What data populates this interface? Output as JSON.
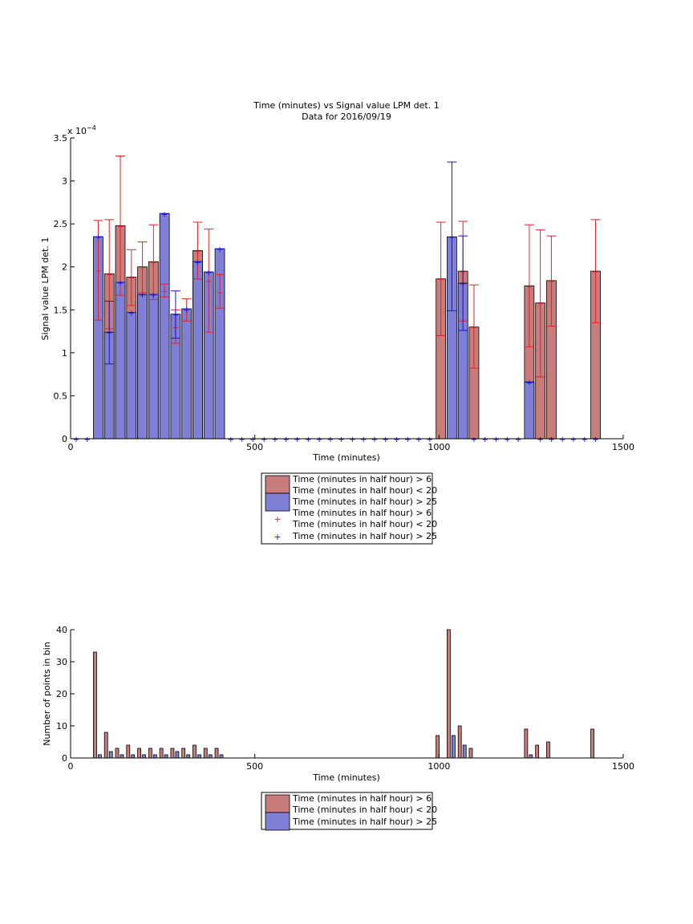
{
  "colors": {
    "red_bar": "#c97c7c",
    "blue_bar": "#7f7fd6",
    "red_err": "#e32222",
    "blue_err": "#1515d6",
    "axis": "#000000"
  },
  "chart_data": [
    {
      "type": "bar",
      "title": "Time (minutes) vs Signal value LPM det. 1",
      "subtitle": "Data for 2016/09/19",
      "xlabel": "Time (minutes)",
      "ylabel": "Signal value LPM det. 1",
      "y_exponent_label": "x 10^-4",
      "xlim": [
        0,
        1500
      ],
      "ylim": [
        0,
        3.5
      ],
      "xticks": [
        0,
        500,
        1000,
        1500
      ],
      "yticks": [
        0,
        0.5,
        1,
        1.5,
        2,
        2.5,
        3,
        3.5
      ],
      "ytick_labels": [
        "0",
        "0.5",
        "1",
        "1.5",
        "2",
        "2.5",
        "3",
        "3.5"
      ],
      "legend_position": "below",
      "legend": [
        "Time (minutes in half hour) > 6",
        "Time (minutes in half hour) < 20",
        "Time (minutes in half hour) > 25",
        "Time (minutes in half hour) > 6",
        "Time (minutes in half hour) < 20",
        "Time (minutes in half hour) > 25"
      ],
      "series": [
        {
          "name": "Time (minutes in half hour) > 6 / < 20",
          "color": "red",
          "points": [
            {
              "x": 105,
              "y": 1.92,
              "lo": 1.28,
              "hi": 2.55
            },
            {
              "x": 135,
              "y": 2.48,
              "lo": 1.67,
              "hi": 3.29
            },
            {
              "x": 165,
              "y": 1.88,
              "lo": 1.55,
              "hi": 2.2
            },
            {
              "x": 195,
              "y": 2.0,
              "lo": 1.7,
              "hi": 2.29
            },
            {
              "x": 225,
              "y": 2.06,
              "lo": 1.62,
              "hi": 2.49
            },
            {
              "x": 345,
              "y": 2.19,
              "lo": 1.86,
              "hi": 2.52
            },
            {
              "x": 1005,
              "y": 1.86,
              "lo": 1.2,
              "hi": 2.52
            },
            {
              "x": 1065,
              "y": 1.95,
              "lo": 1.37,
              "hi": 2.53
            },
            {
              "x": 1095,
              "y": 1.3,
              "lo": 0.82,
              "hi": 1.79
            },
            {
              "x": 1245,
              "y": 1.78,
              "lo": 1.07,
              "hi": 2.49
            },
            {
              "x": 1275,
              "y": 1.58,
              "lo": 0.72,
              "hi": 2.43
            },
            {
              "x": 1305,
              "y": 1.84,
              "lo": 1.31,
              "hi": 2.36
            },
            {
              "x": 1425,
              "y": 1.95,
              "lo": 1.35,
              "hi": 2.55
            }
          ]
        },
        {
          "name": "Time (minutes in half hour) > 25",
          "color": "blue",
          "points": [
            {
              "x": 75,
              "y": 2.35,
              "lo": 2.35,
              "hi": 2.35
            },
            {
              "x": 105,
              "y": 1.24,
              "lo": 0.87,
              "hi": 1.6
            },
            {
              "x": 135,
              "y": 1.82,
              "lo": 1.82,
              "hi": 1.82
            },
            {
              "x": 165,
              "y": 1.47,
              "lo": 1.47,
              "hi": 1.47
            },
            {
              "x": 195,
              "y": 1.68,
              "lo": 1.68,
              "hi": 1.68
            },
            {
              "x": 225,
              "y": 1.68,
              "lo": 1.68,
              "hi": 1.68
            },
            {
              "x": 255,
              "y": 2.62,
              "lo": 2.62,
              "hi": 2.62
            },
            {
              "x": 285,
              "y": 1.45,
              "lo": 1.17,
              "hi": 1.72
            },
            {
              "x": 315,
              "y": 1.51,
              "lo": 1.51,
              "hi": 1.51
            },
            {
              "x": 345,
              "y": 2.06,
              "lo": 2.06,
              "hi": 2.06
            },
            {
              "x": 375,
              "y": 1.94,
              "lo": 1.94,
              "hi": 1.94
            },
            {
              "x": 405,
              "y": 2.21,
              "lo": 2.21,
              "hi": 2.21
            },
            {
              "x": 1035,
              "y": 2.35,
              "lo": 1.49,
              "hi": 3.22
            },
            {
              "x": 1065,
              "y": 1.81,
              "lo": 1.26,
              "hi": 2.36
            },
            {
              "x": 1245,
              "y": 0.66,
              "lo": 0.66,
              "hi": 0.66
            }
          ]
        },
        {
          "name": "Time (minutes in half hour) > 6 (points, behind blue bars)",
          "color": "red",
          "points": [
            {
              "x": 75,
              "y": 1.96,
              "lo": 1.38,
              "hi": 2.54
            },
            {
              "x": 255,
              "y": 1.72,
              "lo": 1.65,
              "hi": 1.8
            },
            {
              "x": 285,
              "y": 1.3,
              "lo": 1.11,
              "hi": 1.5
            },
            {
              "x": 315,
              "y": 1.5,
              "lo": 1.37,
              "hi": 1.63
            },
            {
              "x": 375,
              "y": 1.84,
              "lo": 1.24,
              "hi": 2.44
            },
            {
              "x": 405,
              "y": 1.71,
              "lo": 1.52,
              "hi": 1.91
            }
          ]
        },
        {
          "name": "zero markers",
          "color": "blue",
          "x": [
            15,
            45,
            435,
            465,
            495,
            525,
            555,
            585,
            615,
            645,
            675,
            705,
            735,
            765,
            795,
            825,
            855,
            885,
            915,
            945,
            975,
            1095,
            1125,
            1155,
            1185,
            1215,
            1275,
            1305,
            1335,
            1365,
            1395,
            1425
          ],
          "y": 0
        }
      ]
    },
    {
      "type": "bar",
      "xlabel": "Time (minutes)",
      "ylabel": "Number of points in bin",
      "xlim": [
        0,
        1500
      ],
      "ylim": [
        0,
        40
      ],
      "xticks": [
        0,
        500,
        1000,
        1500
      ],
      "yticks": [
        0,
        10,
        20,
        30,
        40
      ],
      "legend_position": "below",
      "legend": [
        "Time (minutes in half hour) > 6",
        "Time (minutes in half hour) < 20",
        "Time (minutes in half hour) > 25"
      ],
      "series": [
        {
          "name": "Time (minutes in half hour) > 6 / < 20",
          "color": "red",
          "x": [
            75,
            105,
            135,
            165,
            195,
            225,
            255,
            285,
            315,
            345,
            375,
            405,
            1005,
            1035,
            1065,
            1095,
            1245,
            1275,
            1305,
            1425
          ],
          "values": [
            33,
            8,
            3,
            4,
            3,
            3,
            3,
            3,
            3,
            4,
            3,
            3,
            7,
            40,
            10,
            3,
            9,
            4,
            5,
            9
          ]
        },
        {
          "name": "Time (minutes in half hour) > 25",
          "color": "blue",
          "x": [
            75,
            105,
            135,
            165,
            195,
            225,
            255,
            285,
            315,
            345,
            375,
            405,
            1035,
            1065,
            1245
          ],
          "values": [
            1,
            2,
            1,
            1,
            1,
            1,
            1,
            2,
            1,
            1,
            1,
            1,
            7,
            4,
            1
          ]
        }
      ]
    }
  ]
}
